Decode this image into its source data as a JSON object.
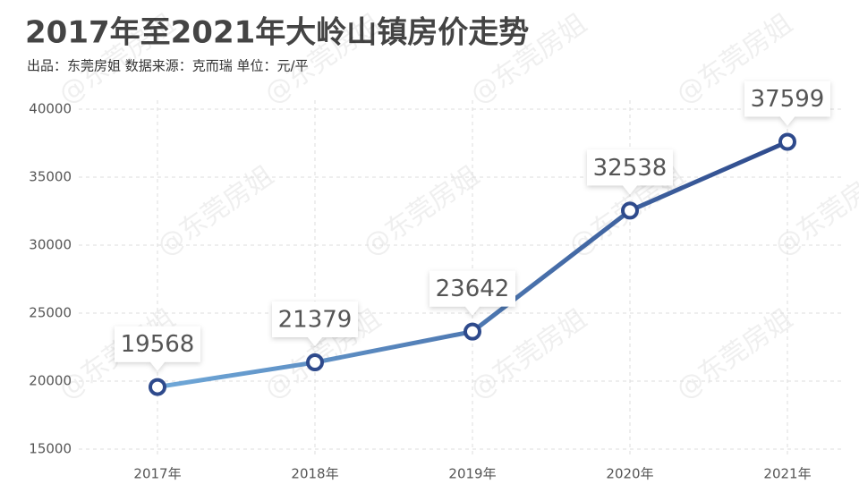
{
  "chart_data": {
    "type": "line",
    "title": "2017年至2021年大岭山镇房价走势",
    "subtitle": "出品：东莞房姐  数据来源：克而瑞   单位：元/平",
    "watermark": "@东莞房姐",
    "categories": [
      "2017年",
      "2018年",
      "2019年",
      "2020年",
      "2021年"
    ],
    "values": [
      19568,
      21379,
      23642,
      32538,
      37599
    ],
    "color_start": "#6fa8d8",
    "color_end": "#2e4a8c",
    "marker_color": "#2e4a8c",
    "ylim": [
      15000,
      40000
    ],
    "yticks": [
      15000,
      20000,
      25000,
      30000,
      35000,
      40000
    ],
    "grid": true
  }
}
